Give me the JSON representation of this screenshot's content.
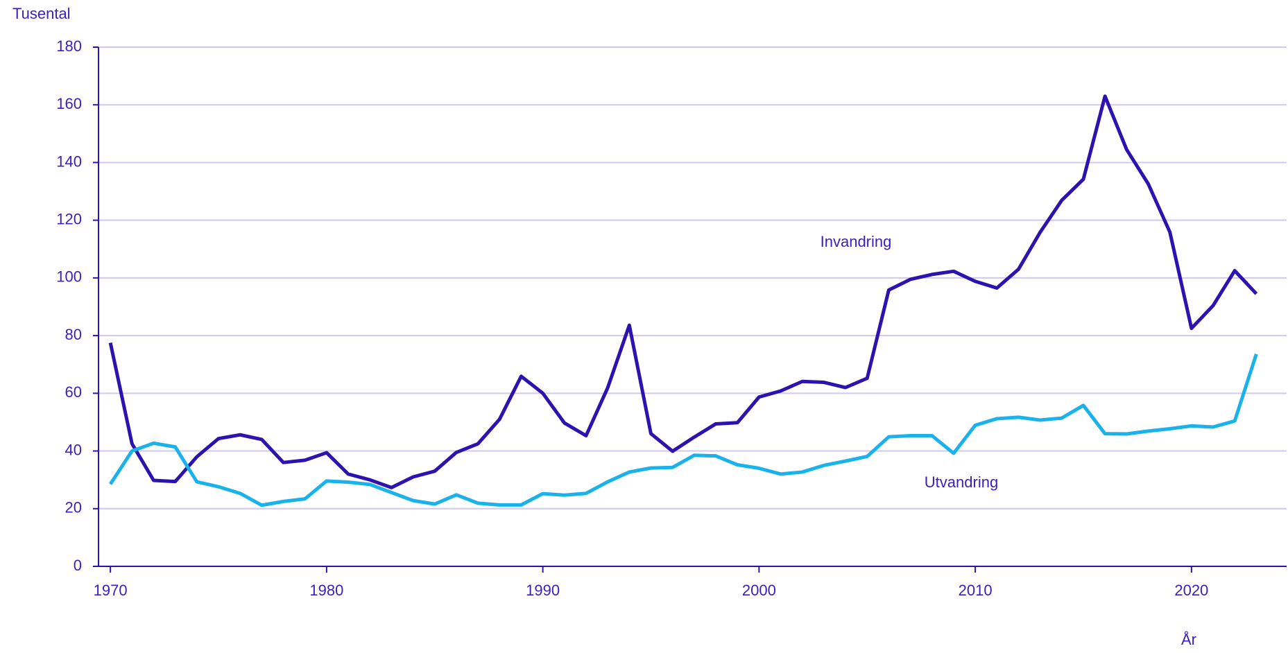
{
  "chart_data": {
    "type": "line",
    "y_label": "Tusental",
    "x_label": "År",
    "annotations": [
      "Invandring",
      "Utvandring"
    ],
    "x": [
      1970,
      1971,
      1972,
      1973,
      1974,
      1975,
      1976,
      1977,
      1978,
      1979,
      1980,
      1981,
      1982,
      1983,
      1984,
      1985,
      1986,
      1987,
      1988,
      1989,
      1990,
      1991,
      1992,
      1993,
      1994,
      1995,
      1996,
      1997,
      1998,
      1999,
      2000,
      2001,
      2002,
      2003,
      2004,
      2005,
      2006,
      2007,
      2008,
      2009,
      2010,
      2011,
      2012,
      2013,
      2014,
      2015,
      2016,
      2017,
      2018,
      2019,
      2020,
      2021,
      2022,
      2023
    ],
    "series": [
      {
        "name": "Invandring",
        "color": "#2e12b0",
        "values": [
          77.5,
          42.5,
          29.8,
          29.4,
          38,
          44.3,
          45.6,
          44,
          36,
          36.8,
          39.4,
          32,
          30,
          27.3,
          31,
          33,
          39.5,
          42.5,
          51,
          65.9,
          60,
          49.7,
          45.3,
          61.9,
          83.6,
          46,
          39.9,
          44.8,
          49.4,
          49.8,
          58.7,
          60.8,
          64.1,
          63.8,
          62,
          65.2,
          95.8,
          99.5,
          101.2,
          102.3,
          98.8,
          96.5,
          103,
          115.8,
          126.9,
          134.2,
          163,
          144.5,
          132.6,
          115.9,
          82.5,
          90.4,
          102.5,
          94.5
        ]
      },
      {
        "name": "Utvandring",
        "color": "#1ab2ea",
        "values": [
          28.5,
          40,
          42.7,
          41.4,
          29.3,
          27.6,
          25.3,
          21.2,
          22.5,
          23.4,
          29.6,
          29.2,
          28.4,
          25.6,
          22.8,
          21.6,
          24.8,
          21.9,
          21.3,
          21.3,
          25.2,
          24.7,
          25.3,
          29.3,
          32.7,
          34.1,
          34.3,
          38.5,
          38.3,
          35.2,
          34,
          32,
          32.7,
          35,
          36.5,
          38.1,
          44.9,
          45.3,
          45.3,
          39.2,
          48.9,
          51.2,
          51.7,
          50.7,
          51.4,
          55.8,
          46,
          45.9,
          46.9,
          47.7,
          48.7,
          48.3,
          50.4,
          73.6
        ]
      }
    ],
    "xlim": [
      1969.45,
      2024.4
    ],
    "xticks": [
      1970,
      1980,
      1990,
      2000,
      2010,
      2020
    ],
    "ylim": [
      0,
      180
    ],
    "yticks": [
      0,
      20,
      40,
      60,
      80,
      100,
      120,
      140,
      160,
      180
    ],
    "grid": true
  }
}
